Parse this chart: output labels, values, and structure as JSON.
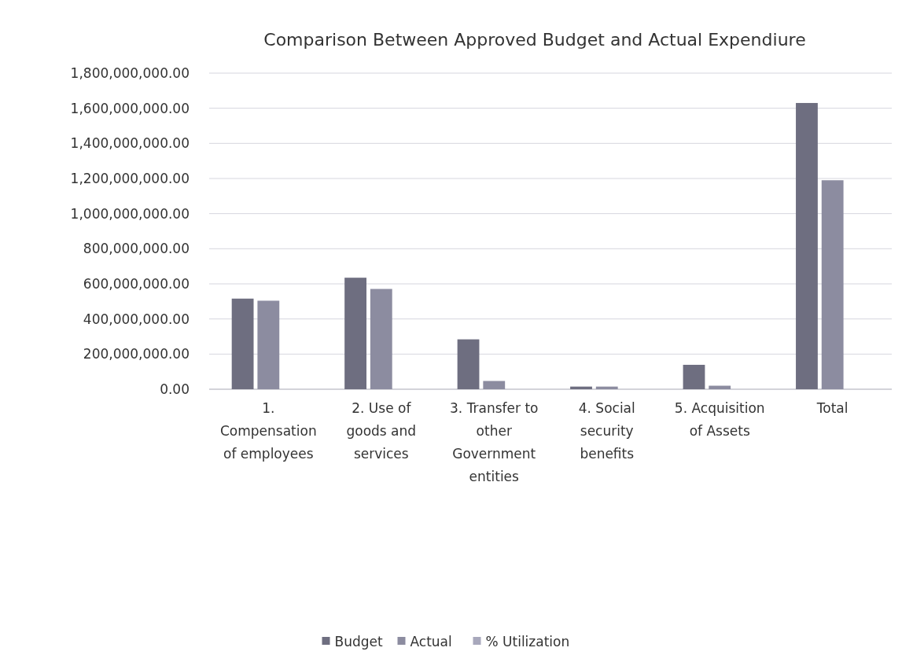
{
  "chart_data": {
    "type": "bar",
    "title": "Comparison Between Approved Budget and Actual Expendiure",
    "categories": [
      "1. Compensation of employees",
      "2. Use of goods and services",
      "3. Transfer to other Government entities",
      "4. Social security benefits",
      "5. Acquisition of Assets",
      "Total"
    ],
    "series": [
      {
        "name": "Budget",
        "color": "#6e6e80",
        "values": [
          516000000,
          635000000,
          284000000,
          15000000,
          139000000,
          1630000000
        ]
      },
      {
        "name": "Actual",
        "color": "#8c8ca0",
        "values": [
          504000000,
          571000000,
          47000000,
          15000000,
          20000000,
          1190000000
        ]
      },
      {
        "name": "% Utilization",
        "color": "#a8a8bc",
        "values": [
          null,
          null,
          null,
          null,
          null,
          null
        ]
      }
    ],
    "ylim": [
      0,
      1800000000
    ],
    "yticks": [
      {
        "value": 0,
        "label": "0.00"
      },
      {
        "value": 200000000,
        "label": "200,000,000.00"
      },
      {
        "value": 400000000,
        "label": "400,000,000.00"
      },
      {
        "value": 600000000,
        "label": "600,000,000.00"
      },
      {
        "value": 800000000,
        "label": "800,000,000.00"
      },
      {
        "value": 1000000000,
        "label": "1,000,000,000.00"
      },
      {
        "value": 1200000000,
        "label": "1,200,000,000.00"
      },
      {
        "value": 1400000000,
        "label": "1,400,000,000.00"
      },
      {
        "value": 1600000000,
        "label": "1,600,000,000.00"
      },
      {
        "value": 1800000000,
        "label": "1,800,000,000.00"
      }
    ],
    "grid": "y",
    "legend": "bottom"
  }
}
